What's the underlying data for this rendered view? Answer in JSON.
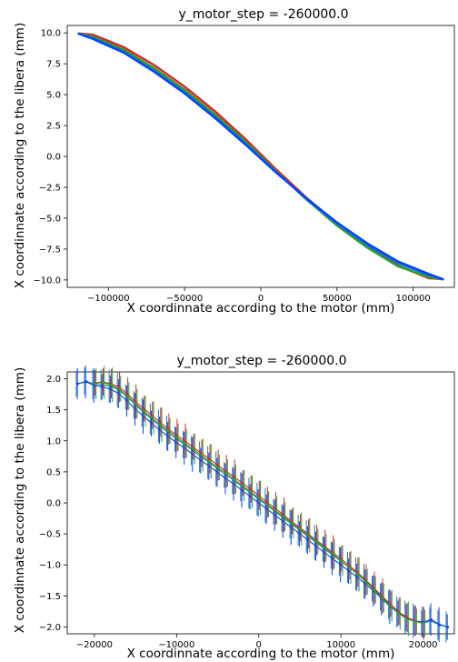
{
  "charts": [
    {
      "title": "y_motor_step = -260000.0",
      "xlabel": "X coordinnate according to the motor (mm)",
      "ylabel": "X coordinnate according to the libera (mm)",
      "xticks": [
        "−100000",
        "−50000",
        "0",
        "50000",
        "100000"
      ],
      "yticks": [
        "10.0",
        "7.5",
        "5.0",
        "2.5",
        "0.0",
        "−2.5",
        "−5.0",
        "−7.5",
        "−10.0"
      ]
    },
    {
      "title": "y_motor_step = -260000.0",
      "xlabel": "X coordinnate according to the motor (mm)",
      "ylabel": "X coordinnate according to the libera (mm)",
      "xticks": [
        "−20000",
        "−10000",
        "0",
        "10000",
        "20000"
      ],
      "yticks": [
        "2.0",
        "1.5",
        "1.0",
        "0.5",
        "0.0",
        "−0.5",
        "−1.0",
        "−1.5",
        "−2.0"
      ]
    }
  ],
  "chart_data": [
    {
      "type": "line",
      "xlim": [
        -127000,
        127000
      ],
      "ylim": [
        -10.6,
        10.6
      ],
      "xticks": [
        -100000,
        -50000,
        0,
        50000,
        100000
      ],
      "yticks": [
        10,
        7.5,
        5,
        2.5,
        0,
        -2.5,
        -5,
        -7.5,
        -10
      ],
      "grid": false,
      "colors": [
        "#d62728",
        "#2ca02c",
        "#1f77b4",
        "#0044ff"
      ],
      "series": [
        {
          "color": "#d62728",
          "x": [
            -120000,
            -110000,
            -90000,
            -70000,
            -50000,
            -30000,
            -10000,
            10000,
            30000,
            50000,
            70000,
            90000,
            110000,
            120000
          ],
          "y": [
            9.95,
            9.85,
            8.85,
            7.4,
            5.65,
            3.65,
            1.4,
            -1.05,
            -3.35,
            -5.45,
            -7.3,
            -8.85,
            -9.85,
            -9.95
          ]
        },
        {
          "color": "#2ca02c",
          "x": [
            -120000,
            -110000,
            -90000,
            -70000,
            -50000,
            -30000,
            -10000,
            10000,
            30000,
            50000,
            70000,
            90000,
            110000,
            120000
          ],
          "y": [
            9.95,
            9.7,
            8.65,
            7.15,
            5.4,
            3.4,
            1.2,
            -1.2,
            -3.5,
            -5.6,
            -7.4,
            -8.9,
            -9.75,
            -9.95
          ]
        },
        {
          "color": "#1f77b4",
          "x": [
            -120000,
            -110000,
            -90000,
            -70000,
            -50000,
            -30000,
            -10000,
            10000,
            30000,
            50000,
            70000,
            90000,
            110000,
            120000
          ],
          "y": [
            9.95,
            9.6,
            8.5,
            6.95,
            5.2,
            3.2,
            1.05,
            -1.25,
            -3.45,
            -5.45,
            -7.2,
            -8.65,
            -9.6,
            -9.95
          ]
        },
        {
          "color": "#0044ff",
          "x": [
            -120000,
            -110000,
            -90000,
            -70000,
            -50000,
            -30000,
            -10000,
            10000,
            30000,
            50000,
            70000,
            90000,
            110000,
            120000
          ],
          "y": [
            9.95,
            9.5,
            8.4,
            6.85,
            5.1,
            3.1,
            0.95,
            -1.3,
            -3.4,
            -5.35,
            -7.05,
            -8.5,
            -9.5,
            -9.95
          ]
        }
      ]
    },
    {
      "type": "line",
      "xlim": [
        -23300,
        23800
      ],
      "ylim": [
        -2.11,
        2.11
      ],
      "xticks": [
        -20000,
        -10000,
        0,
        10000,
        20000
      ],
      "yticks": [
        2,
        1.5,
        1,
        0.5,
        0,
        -0.5,
        -1,
        -1.5,
        -2
      ],
      "grid": false,
      "colors": [
        "#d62728",
        "#2ca02c",
        "#1f77b4",
        "#0044ff"
      ],
      "series": [
        {
          "name": "",
          "color": "#1f77b4",
          "with_errorbars": true,
          "x": [
            -22000,
            -21000,
            -20000,
            -19000,
            -18000,
            -17000,
            -16000,
            -15000,
            -14000,
            -13000,
            -12000,
            -11000,
            -10000,
            -9000,
            -8000,
            -7000,
            -6000,
            -5000,
            -4000,
            -3000,
            -2000,
            -1000,
            0,
            1000,
            2000,
            3000,
            4000,
            5000,
            6000,
            7000,
            8000,
            9000,
            10000,
            11000,
            12000,
            13000,
            14000,
            15000,
            16000,
            17000,
            18000,
            19000,
            20000,
            21000,
            22000,
            23000
          ],
          "y": [
            1.92,
            1.96,
            1.91,
            1.9,
            1.88,
            1.82,
            1.71,
            1.58,
            1.46,
            1.35,
            1.24,
            1.13,
            1.03,
            0.94,
            0.84,
            0.74,
            0.65,
            0.55,
            0.45,
            0.36,
            0.26,
            0.16,
            0.06,
            -0.04,
            -0.14,
            -0.24,
            -0.34,
            -0.44,
            -0.54,
            -0.64,
            -0.74,
            -0.84,
            -0.94,
            -1.04,
            -1.14,
            -1.26,
            -1.38,
            -1.52,
            -1.64,
            -1.76,
            -1.84,
            -1.9,
            -1.94,
            -1.9,
            -1.97,
            -2.0
          ]
        },
        {
          "color": "#0044ff",
          "with_errorbars": true,
          "x": [
            -22000,
            -21000,
            -20000,
            -19000,
            -18000,
            -17000,
            -16000,
            -15000,
            -14000,
            -13000,
            -12000,
            -11000,
            -10000,
            -9000,
            -8000,
            -7000,
            -6000,
            -5000,
            -4000,
            -3000,
            -2000,
            -1000,
            0,
            1000,
            2000,
            3000,
            4000,
            5000,
            6000,
            7000,
            8000,
            9000,
            10000,
            11000,
            12000,
            13000,
            14000,
            15000,
            16000,
            17000,
            18000,
            19000,
            20000,
            21000,
            22000,
            23000
          ],
          "y": [
            1.92,
            1.95,
            1.89,
            1.87,
            1.83,
            1.76,
            1.64,
            1.51,
            1.39,
            1.28,
            1.17,
            1.07,
            0.97,
            0.88,
            0.78,
            0.68,
            0.59,
            0.49,
            0.39,
            0.3,
            0.2,
            0.1,
            0.0,
            -0.1,
            -0.2,
            -0.3,
            -0.4,
            -0.5,
            -0.6,
            -0.7,
            -0.8,
            -0.9,
            -1.0,
            -1.1,
            -1.2,
            -1.31,
            -1.42,
            -1.55,
            -1.67,
            -1.78,
            -1.85,
            -1.9,
            -1.92,
            -1.88,
            -1.96,
            -2.0
          ]
        },
        {
          "color": "#d62728",
          "with_errorbars": true,
          "x": [
            -20000,
            -19000,
            -18000,
            -17000,
            -16000,
            -15000,
            -14000,
            -13000,
            -12000,
            -11000,
            -10000,
            -9000,
            -8000,
            -7000,
            -6000,
            -5000,
            -4000,
            -3000,
            -2000,
            -1000,
            0,
            1000,
            2000,
            3000,
            4000,
            5000,
            6000,
            7000,
            8000,
            9000,
            10000,
            11000,
            12000,
            13000,
            14000,
            15000,
            16000,
            17000,
            18000,
            19000,
            20000
          ],
          "y": [
            1.93,
            1.95,
            1.92,
            1.87,
            1.76,
            1.63,
            1.52,
            1.41,
            1.3,
            1.19,
            1.09,
            1.0,
            0.9,
            0.8,
            0.71,
            0.61,
            0.51,
            0.42,
            0.32,
            0.22,
            0.12,
            0.01,
            -0.09,
            -0.19,
            -0.3,
            -0.4,
            -0.5,
            -0.6,
            -0.7,
            -0.8,
            -0.9,
            -1.01,
            -1.12,
            -1.24,
            -1.37,
            -1.5,
            -1.63,
            -1.75,
            -1.85,
            -1.9,
            -1.94
          ]
        },
        {
          "color": "#2ca02c",
          "with_errorbars": true,
          "x": [
            -20000,
            -19000,
            -18000,
            -17000,
            -16000,
            -15000,
            -14000,
            -13000,
            -12000,
            -11000,
            -10000,
            -9000,
            -8000,
            -7000,
            -6000,
            -5000,
            -4000,
            -3000,
            -2000,
            -1000,
            0,
            1000,
            2000,
            3000,
            4000,
            5000,
            6000,
            7000,
            8000,
            9000,
            10000,
            11000,
            12000,
            13000,
            14000,
            15000,
            16000,
            17000,
            18000,
            19000,
            20000
          ],
          "y": [
            1.92,
            1.94,
            1.9,
            1.84,
            1.72,
            1.6,
            1.48,
            1.37,
            1.26,
            1.16,
            1.06,
            0.96,
            0.87,
            0.77,
            0.67,
            0.57,
            0.48,
            0.38,
            0.28,
            0.18,
            0.08,
            -0.02,
            -0.12,
            -0.22,
            -0.32,
            -0.42,
            -0.52,
            -0.62,
            -0.72,
            -0.82,
            -0.93,
            -1.04,
            -1.15,
            -1.27,
            -1.4,
            -1.53,
            -1.66,
            -1.78,
            -1.87,
            -1.91,
            -1.94
          ]
        }
      ]
    }
  ]
}
